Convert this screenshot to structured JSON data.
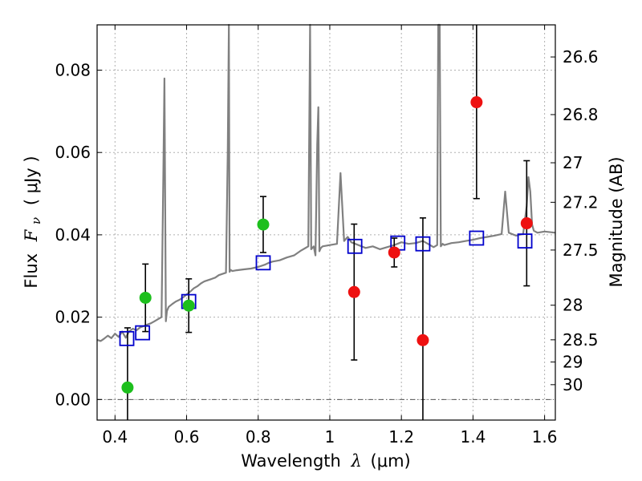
{
  "chart_data": {
    "type": "scatter",
    "xlabel_text": "Wavelength",
    "xlabel_symbol": "λ",
    "xlabel_unit": "(μm)",
    "ylabel_text": "Flux",
    "ylabel_symbol": "F",
    "ylabel_subscript": "ν",
    "ylabel_unit": "( μJy )",
    "y2label": "Magnitude (AB)",
    "xlim": [
      0.35,
      1.63
    ],
    "ylim": [
      -0.005,
      0.091
    ],
    "grid": true,
    "x_ticks": [
      0.4,
      0.6,
      0.8,
      1.0,
      1.2,
      1.4,
      1.6
    ],
    "x_tick_labels": [
      "0.4",
      "0.6",
      "0.8",
      "1",
      "1.2",
      "1.4",
      "1.6"
    ],
    "y_ticks": [
      0.0,
      0.02,
      0.04,
      0.06,
      0.08
    ],
    "y_tick_labels": [
      "0.00",
      "0.02",
      "0.04",
      "0.06",
      "0.08"
    ],
    "mag_ticks": [
      {
        "label": "26.6",
        "flux": 0.0832
      },
      {
        "label": "26.8",
        "flux": 0.0692
      },
      {
        "label": "27",
        "flux": 0.0575
      },
      {
        "label": "27.2",
        "flux": 0.0479
      },
      {
        "label": "27.5",
        "flux": 0.0363
      },
      {
        "label": "28",
        "flux": 0.0229
      },
      {
        "label": "28.5",
        "flux": 0.0145
      },
      {
        "label": "29",
        "flux": 0.0091
      },
      {
        "label": "30",
        "flux": 0.0036
      }
    ],
    "colors": {
      "sed": "#808080",
      "model": "#0000cc",
      "hst": "#1dbf1d",
      "nircam": "#ee1111",
      "errorbar": "#000000",
      "grid": "#b0b0b0"
    },
    "sed": {
      "x": [
        0.35,
        0.36,
        0.37,
        0.38,
        0.39,
        0.4,
        0.41,
        0.42,
        0.43,
        0.44,
        0.45,
        0.46,
        0.47,
        0.48,
        0.49,
        0.5,
        0.51,
        0.52,
        0.53,
        0.535,
        0.538,
        0.542,
        0.545,
        0.55,
        0.56,
        0.57,
        0.58,
        0.59,
        0.6,
        0.61,
        0.62,
        0.63,
        0.64,
        0.65,
        0.66,
        0.67,
        0.68,
        0.69,
        0.7,
        0.71,
        0.715,
        0.718,
        0.72,
        0.723,
        0.728,
        0.74,
        0.76,
        0.78,
        0.8,
        0.82,
        0.83,
        0.84,
        0.86,
        0.88,
        0.9,
        0.92,
        0.94,
        0.945,
        0.948,
        0.951,
        0.955,
        0.96,
        0.965,
        0.968,
        0.971,
        0.975,
        0.98,
        1.0,
        1.02,
        1.03,
        1.04,
        1.05,
        1.06,
        1.08,
        1.1,
        1.12,
        1.14,
        1.16,
        1.18,
        1.2,
        1.22,
        1.24,
        1.26,
        1.28,
        1.29,
        1.3,
        1.303,
        1.307,
        1.31,
        1.315,
        1.32,
        1.34,
        1.36,
        1.38,
        1.4,
        1.42,
        1.44,
        1.46,
        1.48,
        1.49,
        1.5,
        1.52,
        1.54,
        1.55,
        1.555,
        1.56,
        1.565,
        1.57,
        1.58,
        1.6,
        1.63
      ],
      "y": [
        0.0145,
        0.0142,
        0.0148,
        0.0155,
        0.0149,
        0.016,
        0.0152,
        0.0165,
        0.015,
        0.0166,
        0.0172,
        0.0168,
        0.0175,
        0.0178,
        0.0182,
        0.0185,
        0.019,
        0.0195,
        0.02,
        0.054,
        0.078,
        0.019,
        0.0215,
        0.0225,
        0.0232,
        0.0238,
        0.0242,
        0.0248,
        0.0255,
        0.0262,
        0.027,
        0.0275,
        0.0282,
        0.0287,
        0.029,
        0.0293,
        0.0296,
        0.0302,
        0.0305,
        0.0308,
        0.06,
        0.091,
        0.031,
        0.0315,
        0.0312,
        0.0314,
        0.0316,
        0.0318,
        0.0322,
        0.0328,
        0.0332,
        0.0335,
        0.0338,
        0.0345,
        0.035,
        0.0362,
        0.0372,
        0.091,
        0.0365,
        0.0368,
        0.0372,
        0.035,
        0.062,
        0.071,
        0.036,
        0.0368,
        0.0372,
        0.0375,
        0.0378,
        0.055,
        0.0385,
        0.0395,
        0.0382,
        0.0375,
        0.0368,
        0.0372,
        0.0365,
        0.037,
        0.0375,
        0.0382,
        0.0378,
        0.038,
        0.0385,
        0.0375,
        0.037,
        0.0375,
        0.091,
        0.091,
        0.0372,
        0.0378,
        0.0375,
        0.038,
        0.0382,
        0.0385,
        0.0388,
        0.0392,
        0.0395,
        0.0398,
        0.0402,
        0.0505,
        0.0405,
        0.0398,
        0.0402,
        0.047,
        0.054,
        0.0505,
        0.0425,
        0.041,
        0.0405,
        0.0408,
        0.0405
      ]
    },
    "model_photometry": {
      "x": [
        0.433,
        0.477,
        0.606,
        0.814,
        1.07,
        1.19,
        1.26,
        1.41,
        1.545
      ],
      "y": [
        0.0148,
        0.0162,
        0.0238,
        0.0332,
        0.0372,
        0.038,
        0.0378,
        0.0392,
        0.0385
      ]
    },
    "hst_photometry": {
      "x": [
        0.435,
        0.485,
        0.606,
        0.814
      ],
      "y": [
        0.0029,
        0.0247,
        0.0228,
        0.0425
      ],
      "yerr": [
        0.0145,
        0.0082,
        0.0065,
        0.0068
      ]
    },
    "nircam_photometry": {
      "x": [
        1.068,
        1.18,
        1.26,
        1.41,
        1.55
      ],
      "y": [
        0.0261,
        0.0357,
        0.0144,
        0.0722,
        0.0428
      ],
      "yerr": [
        0.0165,
        0.0035,
        0.0297,
        0.0234,
        0.0152
      ]
    }
  }
}
